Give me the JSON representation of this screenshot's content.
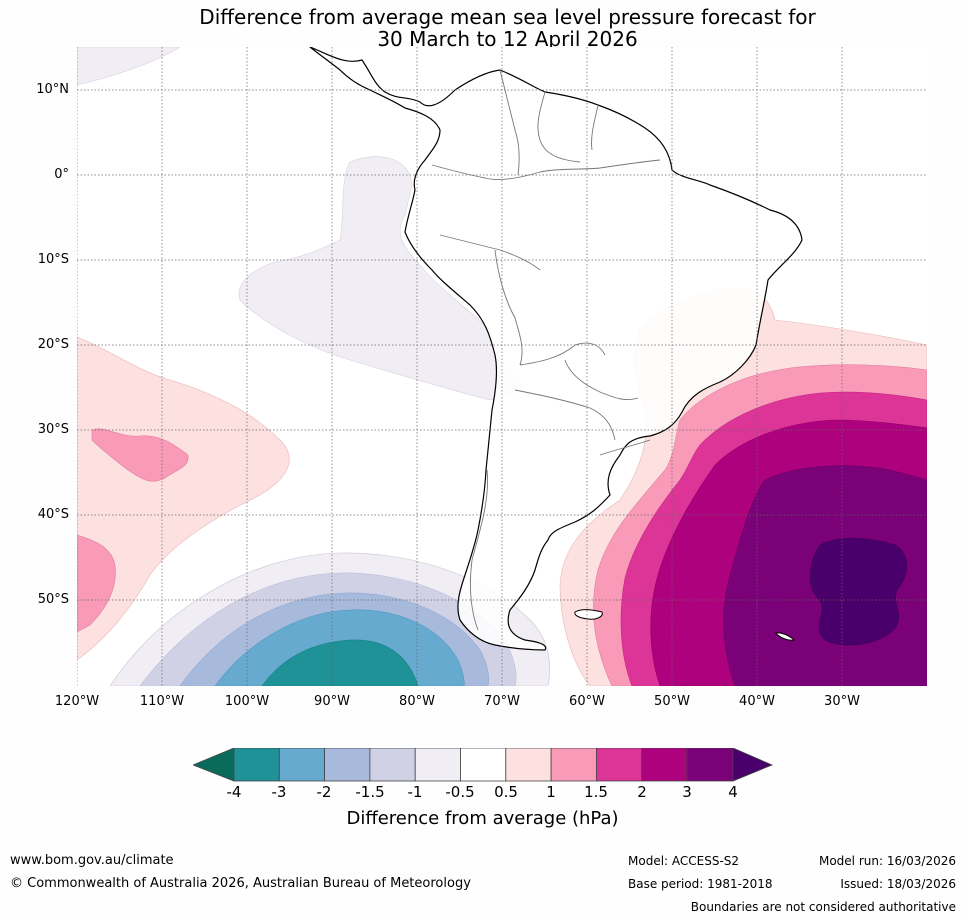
{
  "title": {
    "line1": "Difference from average mean sea level pressure forecast for",
    "line2": "30 March to 12 April 2026"
  },
  "axes": {
    "lat_labels": [
      "10°N",
      "0°",
      "10°S",
      "20°S",
      "30°S",
      "40°S",
      "50°S"
    ],
    "lon_labels": [
      "120°W",
      "110°W",
      "100°W",
      "90°W",
      "80°W",
      "70°W",
      "60°W",
      "50°W",
      "40°W",
      "30°W"
    ]
  },
  "map_data": {
    "region": "South America and surrounding oceans",
    "lon_range": [
      -120,
      -20
    ],
    "lat_range": [
      -60,
      15
    ],
    "anomalies": [
      {
        "name": "strong positive anomaly",
        "location": "South Atlantic east of Argentina",
        "peak_hPa": 4
      },
      {
        "name": "positive anomaly",
        "location": "South Pacific west",
        "peak_hPa": 1.5
      },
      {
        "name": "negative anomaly",
        "location": "Southeast Pacific south of 45°S",
        "peak_hPa": -3
      }
    ]
  },
  "colorbar": {
    "label": "Difference from average (hPa)",
    "ticks": [
      "-4",
      "-3",
      "-2",
      "-1.5",
      "-1",
      "-0.5",
      "0.5",
      "1",
      "1.5",
      "2",
      "3",
      "4"
    ],
    "colors": {
      "below_min": "#0b6b5a",
      "bins": [
        "#1e9297",
        "#66aacf",
        "#a7badc",
        "#d1d1e6",
        "#f1edf4",
        "#ffffff",
        "#fde0e0",
        "#f99bb8",
        "#dd3497",
        "#ae017e",
        "#7a0177"
      ],
      "above_max": "#49006a"
    }
  },
  "footer": {
    "website": "www.bom.gov.au/climate",
    "copyright": "© Commonwealth of Australia 2026, Australian Bureau of Meteorology",
    "model": "Model: ACCESS-S2",
    "base_period": "Base period: 1981-2018",
    "model_run": "Model run: 16/03/2026",
    "issued": "Issued: 18/03/2026",
    "disclaimer": "Boundaries are not considered authoritative"
  }
}
